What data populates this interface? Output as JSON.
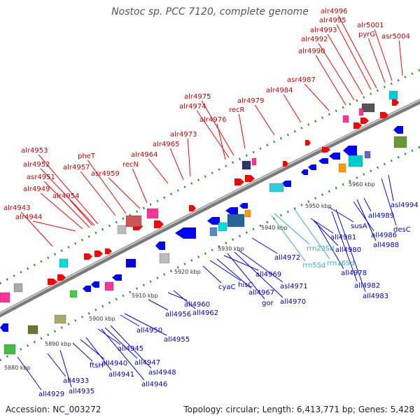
{
  "title": "Nostoc sp. PCC 7120, complete genome",
  "footer": {
    "accession": "Accession: NC_003272",
    "summary": "Topology: circular; Length: 6,413,771 bp; Genes: 5,428"
  },
  "colors": {
    "forward_label": "#cc0000",
    "reverse_label": "#0000cc",
    "rna_label": "#33aacc",
    "forward_gene": "#ff0000",
    "reverse_gene": "#0000ff",
    "backbone": "#909090",
    "tick_dots": "#2f8f2f"
  },
  "scale_ticks": [
    "5880 kbp",
    "5890 kbp",
    "5900 kbp",
    "5910 kbp",
    "5920 kbp",
    "5930 kbp",
    "5940 kbp",
    "5950 kbp",
    "5960 kbp"
  ],
  "forward_labels": [
    "alr4943",
    "alr4944",
    "alr4949",
    "asr4951",
    "alr4952",
    "alr4953",
    "alr4954",
    "alr4957",
    "pheT",
    "asr4959",
    "recN",
    "alr4964",
    "alr4965",
    "alr4973",
    "alr4976",
    "alr4974",
    "alr4975",
    "recR",
    "alr4979",
    "alr4984",
    "asr4987",
    "alr4990",
    "alr4992",
    "alr4993",
    "alr4995",
    "alr4996",
    "pyrG",
    "alr5001",
    "asr5004"
  ],
  "reverse_labels": [
    "all4929",
    "all4933",
    "all4935",
    "ftsH",
    "all4940",
    "all4941",
    "all4945",
    "all4946",
    "all4947",
    "asl4948",
    "all4950",
    "all4955",
    "all4956",
    "all4960",
    "all4962",
    "cyaC",
    "hisC",
    "all4967",
    "all4969",
    "gor",
    "all4970",
    "asl4971",
    "all4972",
    "all4978",
    "all4980",
    "all4981",
    "all4982",
    "all4983",
    "susA",
    "all4986",
    "all4988",
    "all4989",
    "desC",
    "asl4994"
  ],
  "rna_labels": [
    "rrn23Sd",
    "rrn5Sd",
    "rrn16Sd"
  ]
}
